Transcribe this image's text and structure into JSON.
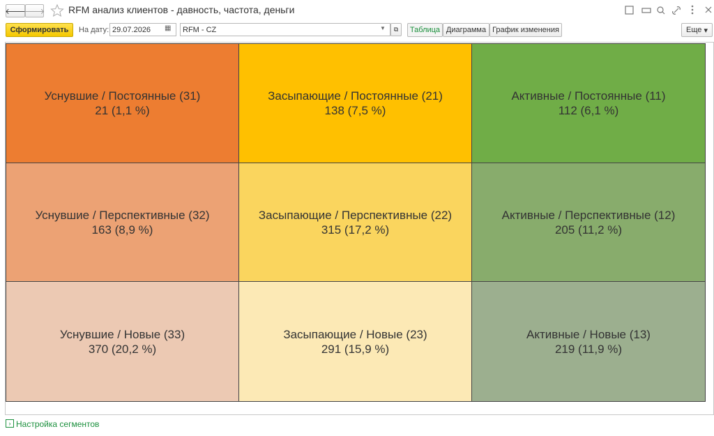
{
  "window": {
    "title": "RFM анализ клиентов - давность, частота, деньги"
  },
  "toolbar": {
    "generate": "Сформировать",
    "date_label": "На дату:",
    "date": "29.07.2026",
    "selector": "RFM - CZ",
    "tabs": [
      "Таблица",
      "Диаграмма",
      "График изменения"
    ],
    "more": "Еще"
  },
  "segments": {
    "rows": [
      [
        {
          "label": "Уснувшие / Постоянные (31)",
          "value": "21 (1,1 %)"
        },
        {
          "label": "Засыпающие / Постоянные (21)",
          "value": "138 (7,5 %)"
        },
        {
          "label": "Активные / Постоянные (11)",
          "value": "112 (6,1 %)"
        }
      ],
      [
        {
          "label": "Уснувшие / Перспективные (32)",
          "value": "163 (8,9 %)"
        },
        {
          "label": "Засыпающие / Перспективные (22)",
          "value": "315 (17,2 %)"
        },
        {
          "label": "Активные / Перспективные (12)",
          "value": "205 (11,2 %)"
        }
      ],
      [
        {
          "label": "Уснувшие / Новые (33)",
          "value": "370 (20,2 %)"
        },
        {
          "label": "Засыпающие / Новые (23)",
          "value": "291 (15,9 %)"
        },
        {
          "label": "Активные / Новые (13)",
          "value": "219 (11,9 %)"
        }
      ]
    ]
  },
  "footer": {
    "link": "Настройка сегментов"
  }
}
